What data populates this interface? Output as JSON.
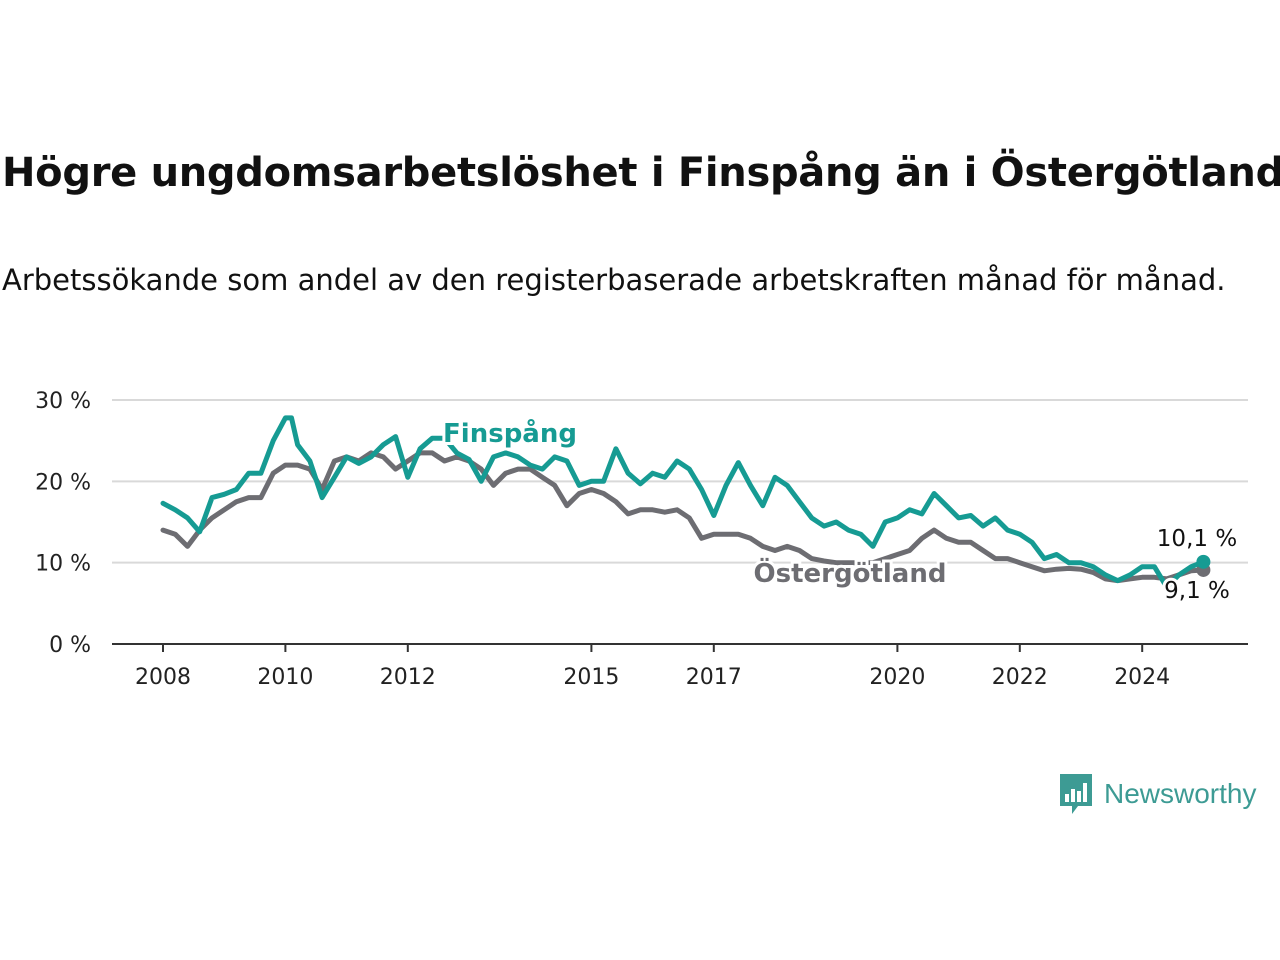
{
  "title": "Högre ungdomsarbetslöshet i Finspång än i Östergötland",
  "subtitle": "Arbetssökande som andel av den registerbaserade arbetskraften månad för månad.",
  "brand": {
    "name": "Newsworthy",
    "icon": "newsworthy-logo-icon"
  },
  "chart_data": {
    "type": "line",
    "title": "Högre ungdomsarbetslöshet i Finspång än i Östergötland",
    "subtitle": "Arbetssökande som andel av den registerbaserade arbetskraften månad för månad.",
    "xlabel": "",
    "ylabel": "",
    "xlim": [
      2008.0,
      2025.5
    ],
    "ylim": [
      0,
      30
    ],
    "y_ticks": [
      0,
      10,
      20,
      30
    ],
    "y_tick_labels": [
      "0 %",
      "10 %",
      "20 %",
      "30 %"
    ],
    "x_ticks": [
      2008,
      2010,
      2012,
      2015,
      2017,
      2020,
      2022,
      2024
    ],
    "x_tick_labels": [
      "2008",
      "2010",
      "2012",
      "2015",
      "2017",
      "2020",
      "2022",
      "2024"
    ],
    "grid": "horizontal",
    "legend": "inline labels",
    "colors": {
      "Finspång": "#169b93",
      "Östergötland": "#6d6d72"
    },
    "series": [
      {
        "name": "Finspång",
        "label": "Finspång",
        "end_label": "10,1 %",
        "points": [
          [
            2008.0,
            17.3
          ],
          [
            2008.2,
            16.5
          ],
          [
            2008.4,
            15.5
          ],
          [
            2008.6,
            13.8
          ],
          [
            2008.8,
            18.0
          ],
          [
            2009.0,
            18.4
          ],
          [
            2009.2,
            19.0
          ],
          [
            2009.4,
            21.0
          ],
          [
            2009.6,
            21.0
          ],
          [
            2009.8,
            25.0
          ],
          [
            2010.0,
            27.8
          ],
          [
            2010.1,
            27.8
          ],
          [
            2010.2,
            24.5
          ],
          [
            2010.4,
            22.5
          ],
          [
            2010.6,
            18.0
          ],
          [
            2010.8,
            20.5
          ],
          [
            2011.0,
            23.0
          ],
          [
            2011.2,
            22.2
          ],
          [
            2011.4,
            23.0
          ],
          [
            2011.6,
            24.5
          ],
          [
            2011.8,
            25.5
          ],
          [
            2012.0,
            20.5
          ],
          [
            2012.2,
            24.0
          ],
          [
            2012.4,
            25.3
          ],
          [
            2012.6,
            25.3
          ],
          [
            2012.8,
            23.5
          ],
          [
            2013.0,
            22.7
          ],
          [
            2013.2,
            20.0
          ],
          [
            2013.4,
            23.0
          ],
          [
            2013.6,
            23.5
          ],
          [
            2013.8,
            23.0
          ],
          [
            2014.0,
            22.0
          ],
          [
            2014.2,
            21.5
          ],
          [
            2014.4,
            23.0
          ],
          [
            2014.6,
            22.5
          ],
          [
            2014.8,
            19.5
          ],
          [
            2015.0,
            20.0
          ],
          [
            2015.2,
            20.0
          ],
          [
            2015.4,
            24.0
          ],
          [
            2015.6,
            21.0
          ],
          [
            2015.8,
            19.7
          ],
          [
            2016.0,
            21.0
          ],
          [
            2016.2,
            20.5
          ],
          [
            2016.4,
            22.5
          ],
          [
            2016.6,
            21.5
          ],
          [
            2016.8,
            19.0
          ],
          [
            2017.0,
            15.8
          ],
          [
            2017.2,
            19.5
          ],
          [
            2017.4,
            22.3
          ],
          [
            2017.6,
            19.5
          ],
          [
            2017.8,
            17.0
          ],
          [
            2018.0,
            20.5
          ],
          [
            2018.2,
            19.5
          ],
          [
            2018.4,
            17.5
          ],
          [
            2018.6,
            15.5
          ],
          [
            2018.8,
            14.5
          ],
          [
            2019.0,
            15.0
          ],
          [
            2019.2,
            14.0
          ],
          [
            2019.4,
            13.5
          ],
          [
            2019.6,
            12.0
          ],
          [
            2019.8,
            15.0
          ],
          [
            2020.0,
            15.5
          ],
          [
            2020.2,
            16.5
          ],
          [
            2020.4,
            16.0
          ],
          [
            2020.6,
            18.5
          ],
          [
            2020.8,
            17.0
          ],
          [
            2021.0,
            15.5
          ],
          [
            2021.2,
            15.8
          ],
          [
            2021.4,
            14.5
          ],
          [
            2021.6,
            15.5
          ],
          [
            2021.8,
            14.0
          ],
          [
            2022.0,
            13.5
          ],
          [
            2022.2,
            12.5
          ],
          [
            2022.4,
            10.5
          ],
          [
            2022.6,
            11.0
          ],
          [
            2022.8,
            10.0
          ],
          [
            2023.0,
            10.0
          ],
          [
            2023.2,
            9.5
          ],
          [
            2023.4,
            8.5
          ],
          [
            2023.6,
            7.8
          ],
          [
            2023.8,
            8.5
          ],
          [
            2024.0,
            9.5
          ],
          [
            2024.2,
            9.5
          ],
          [
            2024.4,
            7.0
          ],
          [
            2024.6,
            8.5
          ],
          [
            2024.8,
            9.5
          ],
          [
            2025.0,
            10.1
          ]
        ]
      },
      {
        "name": "Östergötland",
        "label": "Östergötland",
        "end_label": "9,1 %",
        "points": [
          [
            2008.0,
            14.0
          ],
          [
            2008.2,
            13.5
          ],
          [
            2008.4,
            12.0
          ],
          [
            2008.6,
            14.0
          ],
          [
            2008.8,
            15.5
          ],
          [
            2009.0,
            16.5
          ],
          [
            2009.2,
            17.5
          ],
          [
            2009.4,
            18.0
          ],
          [
            2009.6,
            18.0
          ],
          [
            2009.8,
            21.0
          ],
          [
            2010.0,
            22.0
          ],
          [
            2010.2,
            22.0
          ],
          [
            2010.4,
            21.5
          ],
          [
            2010.6,
            19.0
          ],
          [
            2010.8,
            22.5
          ],
          [
            2011.0,
            23.0
          ],
          [
            2011.2,
            22.5
          ],
          [
            2011.4,
            23.5
          ],
          [
            2011.6,
            23.0
          ],
          [
            2011.8,
            21.5
          ],
          [
            2012.0,
            22.5
          ],
          [
            2012.2,
            23.5
          ],
          [
            2012.4,
            23.5
          ],
          [
            2012.6,
            22.5
          ],
          [
            2012.8,
            23.0
          ],
          [
            2013.0,
            22.5
          ],
          [
            2013.2,
            21.5
          ],
          [
            2013.4,
            19.5
          ],
          [
            2013.6,
            21.0
          ],
          [
            2013.8,
            21.5
          ],
          [
            2014.0,
            21.5
          ],
          [
            2014.2,
            20.5
          ],
          [
            2014.4,
            19.5
          ],
          [
            2014.6,
            17.0
          ],
          [
            2014.8,
            18.5
          ],
          [
            2015.0,
            19.0
          ],
          [
            2015.2,
            18.5
          ],
          [
            2015.4,
            17.5
          ],
          [
            2015.6,
            16.0
          ],
          [
            2015.8,
            16.5
          ],
          [
            2016.0,
            16.5
          ],
          [
            2016.2,
            16.2
          ],
          [
            2016.4,
            16.5
          ],
          [
            2016.6,
            15.5
          ],
          [
            2016.8,
            13.0
          ],
          [
            2017.0,
            13.5
          ],
          [
            2017.2,
            13.5
          ],
          [
            2017.4,
            13.5
          ],
          [
            2017.6,
            13.0
          ],
          [
            2017.8,
            12.0
          ],
          [
            2018.0,
            11.5
          ],
          [
            2018.2,
            12.0
          ],
          [
            2018.4,
            11.5
          ],
          [
            2018.6,
            10.5
          ],
          [
            2018.8,
            10.2
          ],
          [
            2019.0,
            10.0
          ],
          [
            2019.2,
            10.0
          ],
          [
            2019.4,
            10.0
          ],
          [
            2019.6,
            10.0
          ],
          [
            2019.8,
            10.5
          ],
          [
            2020.0,
            11.0
          ],
          [
            2020.2,
            11.5
          ],
          [
            2020.4,
            13.0
          ],
          [
            2020.6,
            14.0
          ],
          [
            2020.8,
            13.0
          ],
          [
            2021.0,
            12.5
          ],
          [
            2021.2,
            12.5
          ],
          [
            2021.4,
            11.5
          ],
          [
            2021.6,
            10.5
          ],
          [
            2021.8,
            10.5
          ],
          [
            2022.0,
            10.0
          ],
          [
            2022.2,
            9.5
          ],
          [
            2022.4,
            9.0
          ],
          [
            2022.6,
            9.2
          ],
          [
            2022.8,
            9.3
          ],
          [
            2023.0,
            9.2
          ],
          [
            2023.2,
            8.8
          ],
          [
            2023.4,
            8.0
          ],
          [
            2023.6,
            7.8
          ],
          [
            2023.8,
            8.0
          ],
          [
            2024.0,
            8.2
          ],
          [
            2024.2,
            8.2
          ],
          [
            2024.4,
            8.0
          ],
          [
            2024.6,
            8.5
          ],
          [
            2024.8,
            9.0
          ],
          [
            2025.0,
            9.1
          ]
        ]
      }
    ]
  }
}
